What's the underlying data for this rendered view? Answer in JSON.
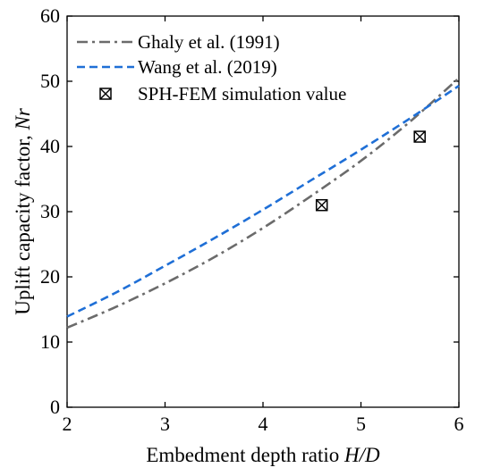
{
  "chart_data": {
    "type": "line",
    "xlabel": "Embedment depth ratio",
    "xlabel_symbol": "H/D",
    "ylabel": "Uplift  capacity factor,",
    "ylabel_symbol": "Nr",
    "xlim": [
      2,
      6
    ],
    "ylim": [
      0,
      60
    ],
    "x_ticks": [
      "2",
      "3",
      "4",
      "5",
      "6"
    ],
    "y_ticks": [
      "0",
      "10",
      "20",
      "30",
      "40",
      "50",
      "60"
    ],
    "grid": false,
    "legend_position": "top-left",
    "series": [
      {
        "name": "Ghaly et al. (1991)",
        "style": "dash-dot",
        "color": "#6b6b6b",
        "x": [
          2.0,
          2.5,
          3.0,
          3.5,
          4.0,
          4.5,
          5.0,
          5.5,
          6.0
        ],
        "y": [
          12.2,
          15.4,
          19.0,
          23.0,
          27.5,
          32.5,
          37.8,
          43.8,
          50.5
        ]
      },
      {
        "name": "Wang et al. (2019)",
        "style": "dashed",
        "color": "#1f6fd6",
        "x": [
          2.0,
          2.5,
          3.0,
          3.5,
          4.0,
          4.5,
          5.0,
          5.5,
          6.0
        ],
        "y": [
          13.9,
          17.6,
          21.7,
          25.9,
          30.3,
          34.9,
          39.5,
          44.3,
          49.3
        ]
      },
      {
        "name": "SPH-FEM simulation value",
        "style": "marker",
        "marker": "boxed-x",
        "color": "#000000",
        "x": [
          4.6,
          5.6
        ],
        "y": [
          31.0,
          41.5
        ]
      }
    ]
  }
}
